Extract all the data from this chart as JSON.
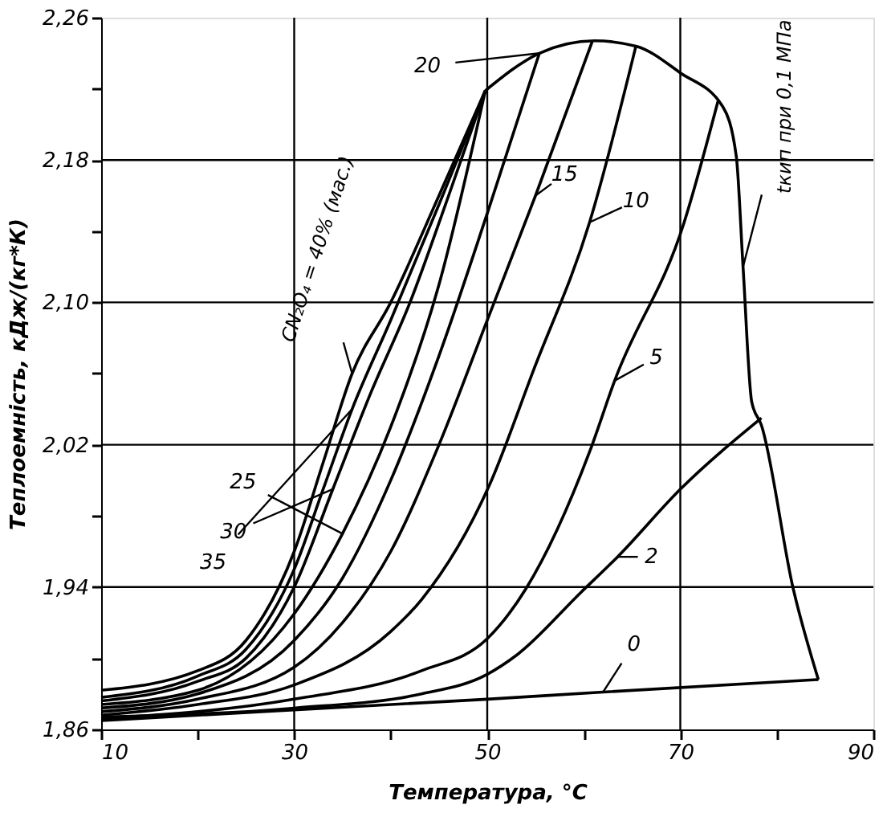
{
  "chart_data": {
    "type": "line",
    "xlabel": "Температура, °C",
    "ylabel": "Теплоемність, кДж/(кг*К)",
    "xlim": [
      10,
      90
    ],
    "ylim": [
      1.86,
      2.26
    ],
    "xticks": [
      10,
      {
        "value": 20,
        "label": null
      },
      30,
      {
        "value": 40,
        "label": null
      },
      50,
      {
        "value": 60,
        "label": null
      },
      70,
      {
        "value": 80,
        "label": null
      },
      90
    ],
    "yticks": [
      {
        "value": 1.86,
        "label": "1,86"
      },
      {
        "value": 1.9,
        "label": null
      },
      {
        "value": 1.94,
        "label": "1,94"
      },
      {
        "value": 1.98,
        "label": null
      },
      {
        "value": 2.02,
        "label": "2,02"
      },
      {
        "value": 2.06,
        "label": null
      },
      {
        "value": 2.1,
        "label": "2,10"
      },
      {
        "value": 2.14,
        "label": null
      },
      {
        "value": 2.18,
        "label": "2,18"
      },
      {
        "value": 2.22,
        "label": null
      },
      {
        "value": 2.26,
        "label": "2,26"
      }
    ],
    "grid": true,
    "marker": "none",
    "line_style": "solid",
    "series": [
      {
        "color": "#000000",
        "x": [
          10,
          50,
          62,
          84.3
        ],
        "values": [
          1.865,
          1.877,
          1.881,
          1.888
        ]
      },
      {
        "color": "#000000",
        "x": [
          10,
          30,
          43.2,
          50,
          53.1,
          59.7,
          63.5,
          70,
          78.4
        ],
        "values": [
          1.867,
          1.872,
          1.88,
          1.891,
          1.902,
          1.937,
          1.957,
          1.995,
          2.035
        ]
      },
      {
        "color": "#000000",
        "x": [
          10,
          30,
          43.2,
          50,
          54,
          60.6,
          63.2,
          70.4,
          73.9
        ],
        "values": [
          1.866,
          1.877,
          1.893,
          1.911,
          1.939,
          2.016,
          2.056,
          2.145,
          2.213
        ]
      },
      {
        "color": "#000000",
        "x": [
          10,
          20,
          30,
          40,
          43.2,
          50.2,
          54.8,
          60.6,
          65.4
        ],
        "values": [
          1.868,
          1.874,
          1.885,
          1.915,
          1.933,
          1.997,
          2.062,
          2.145,
          2.244
        ]
      },
      {
        "color": "#000000",
        "x": [
          10,
          20,
          30,
          35,
          40,
          45,
          50,
          55,
          60.9
        ],
        "values": [
          1.87,
          1.877,
          1.895,
          1.92,
          1.96,
          2.02,
          2.09,
          2.16,
          2.247
        ]
      },
      {
        "color": "#000000",
        "x": [
          10,
          20,
          30,
          35,
          40,
          45,
          50,
          55.4
        ],
        "values": [
          1.872,
          1.88,
          1.91,
          1.945,
          2.0,
          2.07,
          2.15,
          2.24
        ]
      },
      {
        "color": "#000000",
        "x": [
          10,
          20,
          30,
          35,
          40,
          45,
          49.8
        ],
        "values": [
          1.874,
          1.882,
          1.925,
          1.97,
          2.03,
          2.11,
          2.219
        ]
      },
      {
        "color": "#000000",
        "x": [
          10,
          20,
          25,
          30,
          34,
          38,
          42,
          46,
          49.8
        ],
        "values": [
          1.876,
          1.887,
          1.9,
          1.94,
          1.995,
          2.05,
          2.1,
          2.16,
          2.219
        ]
      },
      {
        "color": "#000000",
        "x": [
          10,
          20,
          25,
          30,
          33,
          36,
          40,
          45,
          49.8
        ],
        "values": [
          1.878,
          1.89,
          1.905,
          1.95,
          1.995,
          2.04,
          2.09,
          2.155,
          2.219
        ]
      },
      {
        "color": "#000000",
        "x": [
          10,
          20,
          25,
          30,
          33,
          36,
          40,
          45,
          49.8
        ],
        "values": [
          1.882,
          1.893,
          1.91,
          1.96,
          2.01,
          2.06,
          2.1,
          2.16,
          2.219
        ]
      },
      {
        "color": "#000000",
        "x": [
          49.8,
          55.4,
          61.1,
          65.4,
          70,
          74.4,
          75.8,
          76.5,
          77.4,
          78.4,
          81.7,
          84.3
        ],
        "values": [
          2.219,
          2.24,
          2.247,
          2.244,
          2.229,
          2.21,
          2.182,
          2.12,
          2.044,
          2.031,
          1.939,
          1.888
        ]
      }
    ],
    "annotations": [
      {
        "text": "0",
        "x": 62,
        "y": 1.881
      },
      {
        "text": "2",
        "x": 63.5,
        "y": 1.957
      },
      {
        "text": "5",
        "x": 63.2,
        "y": 2.056
      },
      {
        "text": "10",
        "x": 60.6,
        "y": 2.145
      },
      {
        "text": "15",
        "x": 55,
        "y": 2.16
      },
      {
        "text": "20",
        "x": 55.4,
        "y": 2.24
      },
      {
        "text": "25",
        "x": 35,
        "y": 1.97
      },
      {
        "text": "30",
        "x": 34,
        "y": 1.995
      },
      {
        "text": "35",
        "x": 36,
        "y": 2.04
      },
      {
        "text": "CN₂O₄ = 40% (мас.)",
        "x": 36,
        "y": 2.06
      },
      {
        "text": "tкип при 0,1 МПа",
        "x": 76.5,
        "y": 2.12
      }
    ]
  }
}
